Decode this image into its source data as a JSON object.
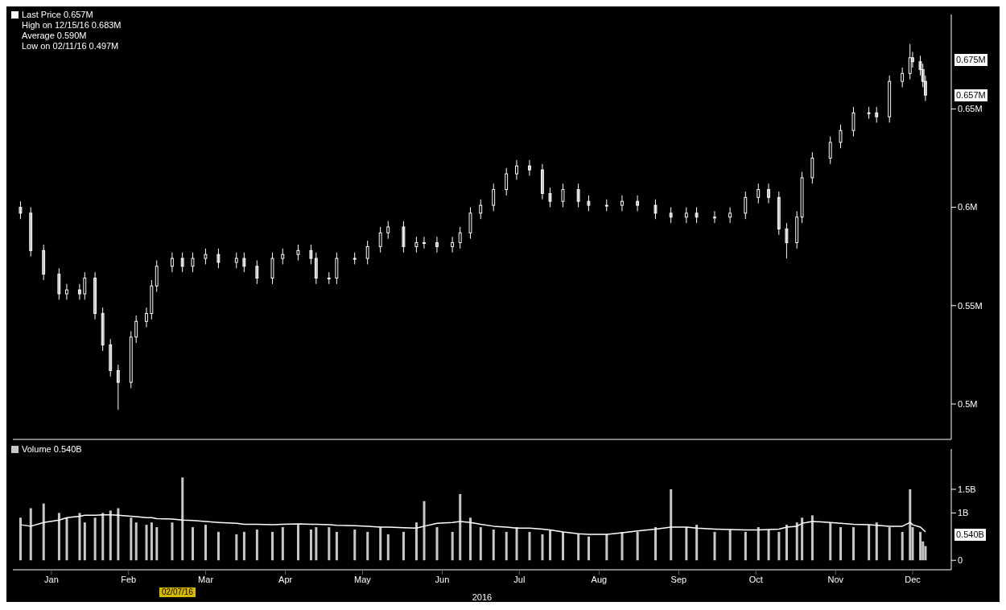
{
  "chart_data": [
    {
      "type": "candlestick",
      "legend": "top left",
      "tick_labels": "y",
      "x": [
        "2016-01-04",
        "2016-01-08",
        "2016-01-13",
        "2016-01-19",
        "2016-01-22",
        "2016-01-27",
        "2016-01-29",
        "2016-02-02",
        "2016-02-05",
        "2016-02-08",
        "2016-02-11",
        "2016-02-16",
        "2016-02-18",
        "2016-02-22",
        "2016-02-24",
        "2016-02-26",
        "2016-03-03",
        "2016-03-07",
        "2016-03-11",
        "2016-03-16",
        "2016-03-21",
        "2016-03-28",
        "2016-03-31",
        "2016-04-05",
        "2016-04-11",
        "2016-04-15",
        "2016-04-21",
        "2016-04-26",
        "2016-04-28",
        "2016-05-03",
        "2016-05-06",
        "2016-05-13",
        "2016-05-18",
        "2016-05-23",
        "2016-05-26",
        "2016-06-01",
        "2016-06-06",
        "2016-06-09",
        "2016-06-14",
        "2016-06-20",
        "2016-06-23",
        "2016-06-27",
        "2016-07-01",
        "2016-07-06",
        "2016-07-11",
        "2016-07-15",
        "2016-07-20",
        "2016-07-25",
        "2016-07-28",
        "2016-08-02",
        "2016-08-08",
        "2016-08-12",
        "2016-08-19",
        "2016-08-25",
        "2016-08-31",
        "2016-09-07",
        "2016-09-13",
        "2016-09-19",
        "2016-09-23",
        "2016-09-30",
        "2016-10-06",
        "2016-10-12",
        "2016-10-17",
        "2016-10-21",
        "2016-10-25",
        "2016-10-28",
        "2016-11-01",
        "2016-11-03",
        "2016-11-07",
        "2016-11-14",
        "2016-11-18",
        "2016-11-23",
        "2016-11-29",
        "2016-12-02",
        "2016-12-07",
        "2016-12-12",
        "2016-12-15",
        "2016-12-16",
        "2016-12-19",
        "2016-12-20",
        "2016-12-21"
      ],
      "series": [
        {
          "name": "Last Price 0.657M",
          "color": "#ffffff",
          "ohlc": [
            [
              0.6,
              0.603,
              0.594,
              0.597
            ],
            [
              0.597,
              0.6,
              0.575,
              0.578
            ],
            [
              0.578,
              0.581,
              0.563,
              0.566
            ],
            [
              0.566,
              0.569,
              0.553,
              0.556
            ],
            [
              0.556,
              0.561,
              0.553,
              0.558
            ],
            [
              0.558,
              0.561,
              0.553,
              0.556
            ],
            [
              0.556,
              0.567,
              0.553,
              0.564
            ],
            [
              0.564,
              0.567,
              0.543,
              0.546
            ],
            [
              0.546,
              0.549,
              0.527,
              0.53
            ],
            [
              0.53,
              0.533,
              0.514,
              0.517
            ],
            [
              0.517,
              0.52,
              0.497,
              0.511
            ],
            [
              0.511,
              0.537,
              0.508,
              0.534
            ],
            [
              0.534,
              0.545,
              0.531,
              0.542
            ],
            [
              0.542,
              0.549,
              0.539,
              0.546
            ],
            [
              0.546,
              0.563,
              0.543,
              0.56
            ],
            [
              0.56,
              0.573,
              0.557,
              0.57
            ],
            [
              0.57,
              0.577,
              0.567,
              0.574
            ],
            [
              0.574,
              0.577,
              0.567,
              0.57
            ],
            [
              0.57,
              0.577,
              0.567,
              0.574
            ],
            [
              0.574,
              0.579,
              0.571,
              0.576
            ],
            [
              0.576,
              0.579,
              0.569,
              0.572
            ],
            [
              0.572,
              0.577,
              0.569,
              0.574
            ],
            [
              0.574,
              0.577,
              0.567,
              0.57
            ],
            [
              0.57,
              0.573,
              0.561,
              0.564
            ],
            [
              0.564,
              0.577,
              0.561,
              0.574
            ],
            [
              0.574,
              0.579,
              0.571,
              0.576
            ],
            [
              0.576,
              0.581,
              0.573,
              0.578
            ],
            [
              0.578,
              0.581,
              0.571,
              0.574
            ],
            [
              0.574,
              0.577,
              0.561,
              0.564
            ],
            [
              0.564,
              0.567,
              0.561,
              0.564
            ],
            [
              0.564,
              0.577,
              0.561,
              0.574
            ],
            [
              0.574,
              0.577,
              0.571,
              0.574
            ],
            [
              0.574,
              0.583,
              0.571,
              0.58
            ],
            [
              0.58,
              0.59,
              0.577,
              0.587
            ],
            [
              0.587,
              0.593,
              0.584,
              0.59
            ],
            [
              0.59,
              0.593,
              0.577,
              0.58
            ],
            [
              0.58,
              0.585,
              0.577,
              0.582
            ],
            [
              0.582,
              0.585,
              0.579,
              0.582
            ],
            [
              0.582,
              0.585,
              0.577,
              0.58
            ],
            [
              0.58,
              0.585,
              0.577,
              0.582
            ],
            [
              0.582,
              0.59,
              0.579,
              0.587
            ],
            [
              0.587,
              0.6,
              0.584,
              0.597
            ],
            [
              0.597,
              0.604,
              0.594,
              0.601
            ],
            [
              0.601,
              0.612,
              0.598,
              0.609
            ],
            [
              0.609,
              0.62,
              0.606,
              0.617
            ],
            [
              0.617,
              0.624,
              0.614,
              0.621
            ],
            [
              0.621,
              0.624,
              0.616,
              0.619
            ],
            [
              0.619,
              0.622,
              0.604,
              0.607
            ],
            [
              0.607,
              0.61,
              0.6,
              0.603
            ],
            [
              0.603,
              0.612,
              0.6,
              0.609
            ],
            [
              0.609,
              0.612,
              0.6,
              0.603
            ],
            [
              0.603,
              0.606,
              0.598,
              0.601
            ],
            [
              0.601,
              0.604,
              0.598,
              0.601
            ],
            [
              0.601,
              0.606,
              0.598,
              0.603
            ],
            [
              0.603,
              0.606,
              0.598,
              0.601
            ],
            [
              0.601,
              0.604,
              0.594,
              0.597
            ],
            [
              0.597,
              0.6,
              0.592,
              0.595
            ],
            [
              0.595,
              0.6,
              0.592,
              0.597
            ],
            [
              0.597,
              0.6,
              0.592,
              0.595
            ],
            [
              0.595,
              0.598,
              0.592,
              0.595
            ],
            [
              0.595,
              0.6,
              0.592,
              0.597
            ],
            [
              0.597,
              0.608,
              0.594,
              0.605
            ],
            [
              0.605,
              0.612,
              0.602,
              0.609
            ],
            [
              0.609,
              0.612,
              0.602,
              0.605
            ],
            [
              0.605,
              0.608,
              0.586,
              0.589
            ],
            [
              0.589,
              0.592,
              0.574,
              0.582
            ],
            [
              0.582,
              0.598,
              0.579,
              0.595
            ],
            [
              0.595,
              0.618,
              0.592,
              0.615
            ],
            [
              0.615,
              0.628,
              0.612,
              0.625
            ],
            [
              0.625,
              0.636,
              0.622,
              0.633
            ],
            [
              0.633,
              0.642,
              0.63,
              0.639
            ],
            [
              0.639,
              0.651,
              0.636,
              0.648
            ],
            [
              0.648,
              0.651,
              0.645,
              0.648
            ],
            [
              0.648,
              0.651,
              0.643,
              0.646
            ],
            [
              0.646,
              0.667,
              0.643,
              0.664
            ],
            [
              0.664,
              0.671,
              0.661,
              0.668
            ],
            [
              0.668,
              0.683,
              0.665,
              0.676
            ],
            [
              0.676,
              0.679,
              0.671,
              0.674
            ],
            [
              0.674,
              0.677,
              0.667,
              0.67
            ],
            [
              0.67,
              0.673,
              0.661,
              0.664
            ],
            [
              0.664,
              0.667,
              0.654,
              0.657
            ]
          ]
        }
      ],
      "xlim": [
        "2016-01-01",
        "2016-12-31"
      ],
      "ylim": [
        0.482,
        0.698
      ],
      "yticks": [
        {
          "value": 0.5,
          "label": "0.5M"
        },
        {
          "value": 0.55,
          "label": "0.55M"
        },
        {
          "value": 0.6,
          "label": "0.6M"
        },
        {
          "value": 0.65,
          "label": "0.65M"
        }
      ],
      "annotations": [
        "High on 12/15/16 0.683M",
        "Average 0.590M",
        "Low on 02/11/16 0.497M",
        {
          "text": "0.675M",
          "y": 0.675
        },
        {
          "text": "0.657M",
          "y": 0.657
        }
      ]
    },
    {
      "type": "bar",
      "legend": "top left",
      "xlabel": "2016",
      "x": [
        "2016-01-04",
        "2016-01-08",
        "2016-01-13",
        "2016-01-19",
        "2016-01-22",
        "2016-01-27",
        "2016-01-29",
        "2016-02-02",
        "2016-02-05",
        "2016-02-08",
        "2016-02-11",
        "2016-02-16",
        "2016-02-18",
        "2016-02-22",
        "2016-02-24",
        "2016-02-26",
        "2016-03-03",
        "2016-03-07",
        "2016-03-11",
        "2016-03-16",
        "2016-03-21",
        "2016-03-28",
        "2016-03-31",
        "2016-04-05",
        "2016-04-11",
        "2016-04-15",
        "2016-04-21",
        "2016-04-26",
        "2016-04-28",
        "2016-05-03",
        "2016-05-06",
        "2016-05-13",
        "2016-05-18",
        "2016-05-23",
        "2016-05-26",
        "2016-06-01",
        "2016-06-06",
        "2016-06-09",
        "2016-06-14",
        "2016-06-20",
        "2016-06-23",
        "2016-06-27",
        "2016-07-01",
        "2016-07-06",
        "2016-07-11",
        "2016-07-15",
        "2016-07-20",
        "2016-07-25",
        "2016-07-28",
        "2016-08-02",
        "2016-08-08",
        "2016-08-12",
        "2016-08-19",
        "2016-08-25",
        "2016-08-31",
        "2016-09-07",
        "2016-09-13",
        "2016-09-19",
        "2016-09-23",
        "2016-09-30",
        "2016-10-06",
        "2016-10-12",
        "2016-10-17",
        "2016-10-21",
        "2016-10-25",
        "2016-10-28",
        "2016-11-01",
        "2016-11-03",
        "2016-11-07",
        "2016-11-14",
        "2016-11-18",
        "2016-11-23",
        "2016-11-29",
        "2016-12-02",
        "2016-12-07",
        "2016-12-12",
        "2016-12-15",
        "2016-12-16",
        "2016-12-19",
        "2016-12-20",
        "2016-12-21"
      ],
      "series": [
        {
          "name": "Volume 0.540B",
          "type": "bar",
          "color": "#c8c8c8",
          "values": [
            0.9,
            1.1,
            1.2,
            1.0,
            0.9,
            1.0,
            0.8,
            0.9,
            1.0,
            1.05,
            1.1,
            0.9,
            0.8,
            0.75,
            0.8,
            0.7,
            0.8,
            1.75,
            0.7,
            0.75,
            0.6,
            0.55,
            0.6,
            0.65,
            0.6,
            0.7,
            0.75,
            0.65,
            0.7,
            0.7,
            0.6,
            0.65,
            0.6,
            0.7,
            0.55,
            0.6,
            0.8,
            1.25,
            0.7,
            0.6,
            1.4,
            0.9,
            0.7,
            0.65,
            0.6,
            0.7,
            0.6,
            0.55,
            0.65,
            0.6,
            0.55,
            0.5,
            0.55,
            0.6,
            0.6,
            0.7,
            1.5,
            0.7,
            0.75,
            0.6,
            0.65,
            0.6,
            0.7,
            0.65,
            0.6,
            0.75,
            0.8,
            0.9,
            0.95,
            0.8,
            0.7,
            0.7,
            0.75,
            0.8,
            0.7,
            0.6,
            1.5,
            0.7,
            0.6,
            0.4,
            0.3
          ]
        },
        {
          "type": "line",
          "color": "#ffffff",
          "values": [
            0.75,
            0.72,
            0.8,
            0.85,
            0.9,
            0.93,
            0.95,
            0.95,
            0.96,
            0.96,
            0.95,
            0.93,
            0.92,
            0.9,
            0.9,
            0.88,
            0.87,
            0.85,
            0.84,
            0.82,
            0.8,
            0.78,
            0.76,
            0.76,
            0.75,
            0.76,
            0.77,
            0.76,
            0.76,
            0.75,
            0.74,
            0.73,
            0.72,
            0.7,
            0.7,
            0.69,
            0.68,
            0.72,
            0.78,
            0.8,
            0.82,
            0.8,
            0.76,
            0.72,
            0.7,
            0.68,
            0.68,
            0.66,
            0.64,
            0.6,
            0.56,
            0.55,
            0.55,
            0.58,
            0.62,
            0.66,
            0.7,
            0.7,
            0.68,
            0.66,
            0.65,
            0.64,
            0.64,
            0.65,
            0.66,
            0.7,
            0.72,
            0.78,
            0.82,
            0.8,
            0.78,
            0.76,
            0.75,
            0.74,
            0.72,
            0.72,
            0.8,
            0.75,
            0.7,
            0.65,
            0.6
          ]
        }
      ],
      "xlim": [
        "2016-01-01",
        "2016-12-31"
      ],
      "xticks": [
        {
          "value": "2016-01-16",
          "label": "Jan"
        },
        {
          "value": "2016-02-15",
          "label": "Feb"
        },
        {
          "value": "2016-03-16",
          "label": "Mar"
        },
        {
          "value": "2016-04-16",
          "label": "Apr"
        },
        {
          "value": "2016-05-16",
          "label": "May"
        },
        {
          "value": "2016-06-16",
          "label": "Jun"
        },
        {
          "value": "2016-07-16",
          "label": "Jul"
        },
        {
          "value": "2016-08-16",
          "label": "Aug"
        },
        {
          "value": "2016-09-16",
          "label": "Sep"
        },
        {
          "value": "2016-10-16",
          "label": "Oct"
        },
        {
          "value": "2016-11-16",
          "label": "Nov"
        },
        {
          "value": "2016-12-16",
          "label": "Dec"
        }
      ],
      "ylim": [
        -0.2,
        2.35
      ],
      "yticks": [
        0,
        {
          "value": 1,
          "label": "1B"
        },
        {
          "value": 1.5,
          "label": "1.5B"
        }
      ],
      "annotations": [
        {
          "text": "0.540B",
          "y": 0.54
        },
        "02/07/16"
      ]
    }
  ]
}
